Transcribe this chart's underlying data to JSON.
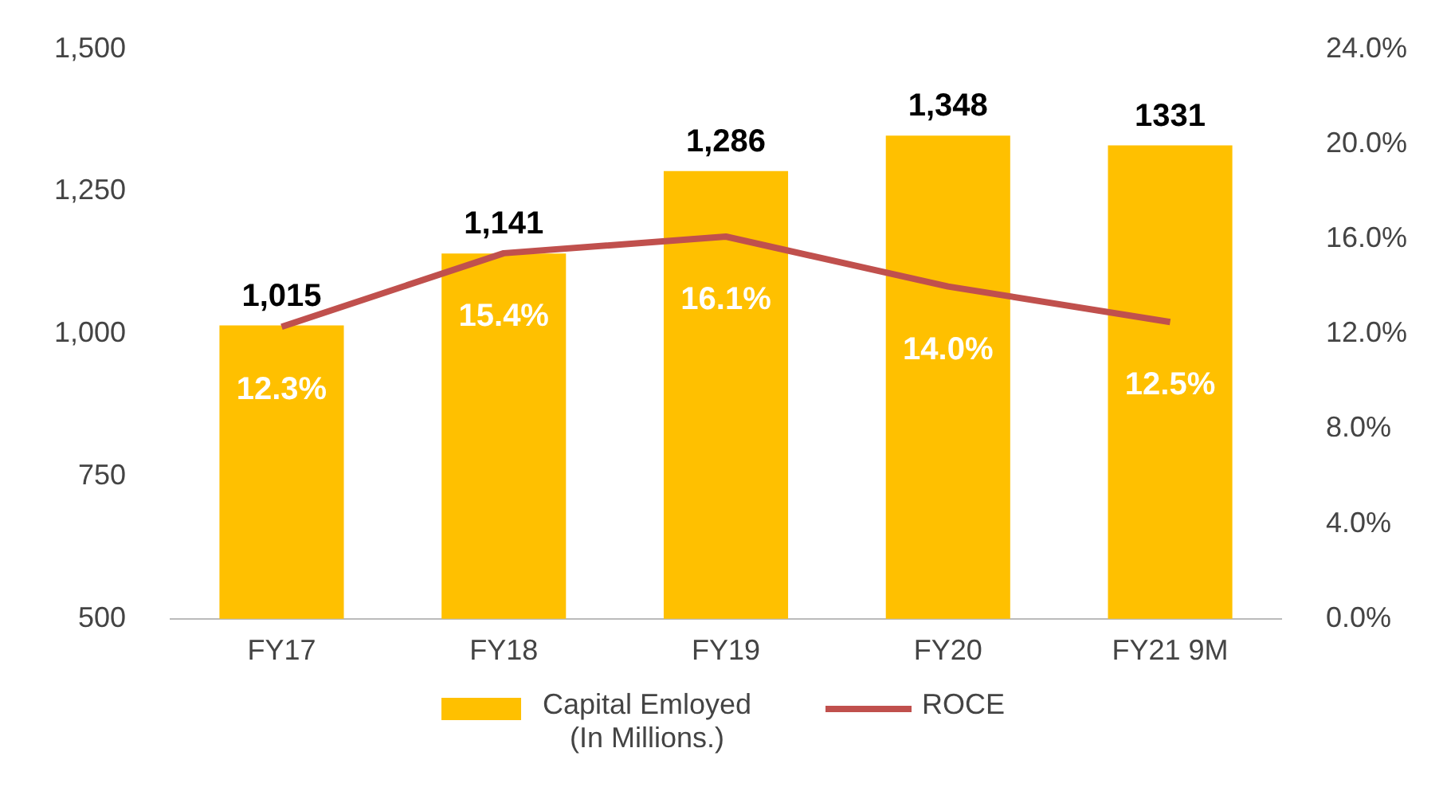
{
  "chart_data": {
    "type": "bar",
    "categories": [
      "FY17",
      "FY18",
      "FY19",
      "FY20",
      "FY21 9M"
    ],
    "series": [
      {
        "name": "Capital Emloyed (In Millions.)",
        "color": "#ffc000",
        "values": [
          1015,
          1141,
          1286,
          1348,
          1331
        ],
        "value_labels": [
          "1,015",
          "1,141",
          "1,286",
          "1,348",
          "1331"
        ]
      },
      {
        "name": "ROCE",
        "type": "line",
        "axis": "y2",
        "color": "#c0504d",
        "values": [
          12.3,
          15.4,
          16.1,
          14.0,
          12.5
        ],
        "value_labels": [
          "12.3%",
          "15.4%",
          "16.1%",
          "14.0%",
          "12.5%"
        ]
      }
    ],
    "ylim": [
      500,
      1500
    ],
    "yticks": [
      500,
      750,
      {
        "value": 1000,
        "label": "1,000"
      },
      {
        "value": 1250,
        "label": "1,250"
      },
      {
        "value": 1500,
        "label": "1,500"
      }
    ],
    "y2lim": [
      0,
      24
    ],
    "y2ticks": [
      {
        "value": 0,
        "label": "0.0%"
      },
      {
        "value": 4,
        "label": "4.0%"
      },
      {
        "value": 8,
        "label": "8.0%"
      },
      {
        "value": 12,
        "label": "12.0%"
      },
      {
        "value": 16,
        "label": "16.0%"
      },
      {
        "value": 20,
        "label": "20.0%"
      },
      {
        "value": 24,
        "label": "24.0%"
      }
    ],
    "grid": false,
    "legend": "bottom",
    "marker": "none",
    "line_style": "solid"
  }
}
